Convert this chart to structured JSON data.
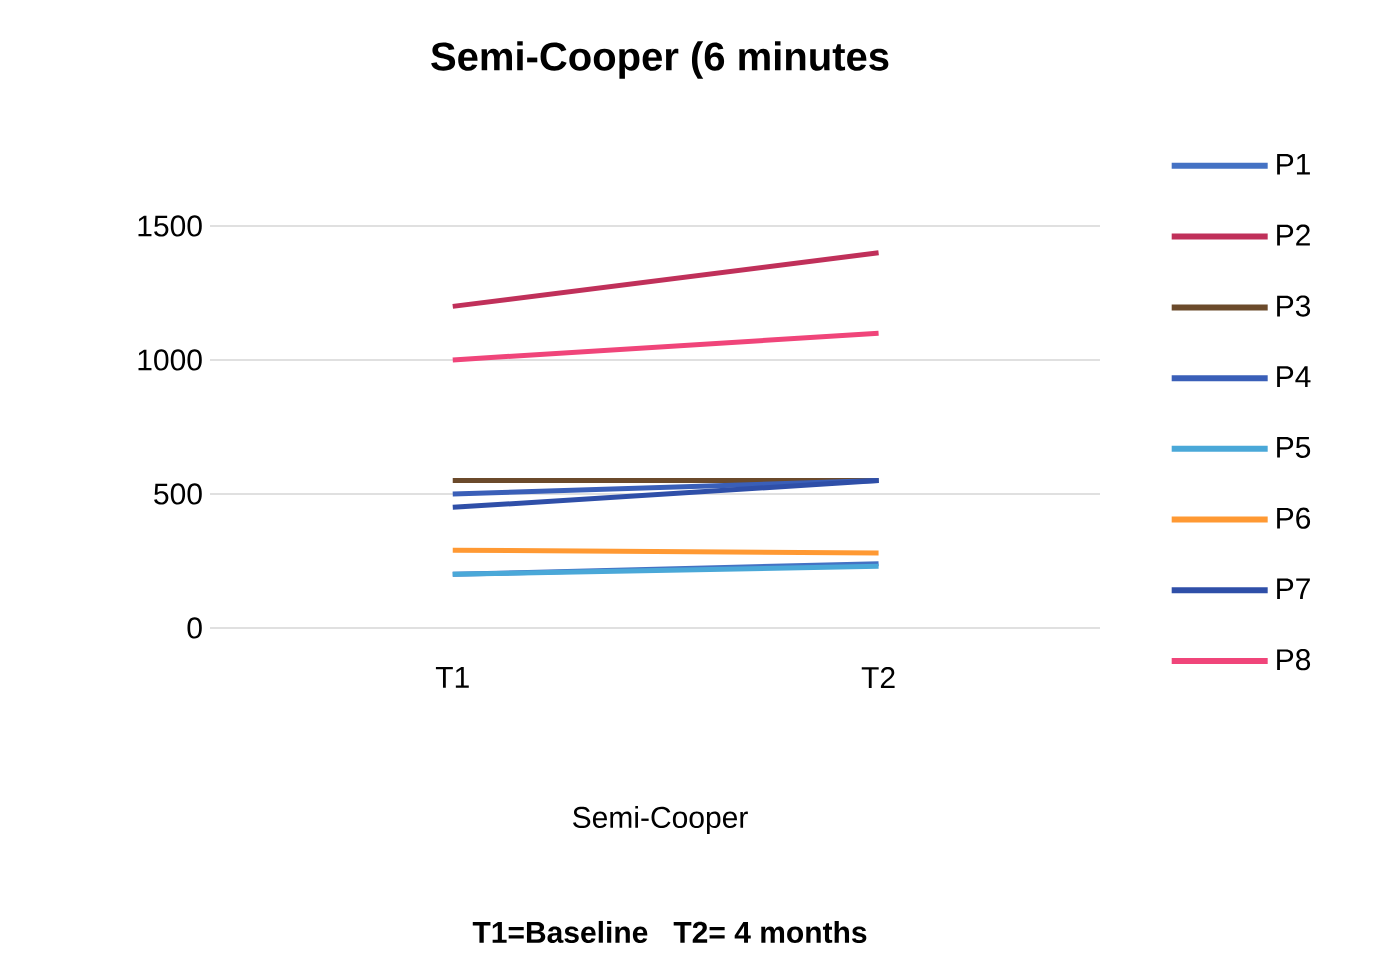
{
  "chart_data": {
    "type": "line",
    "title": "Semi-Cooper (6 minutes",
    "xlabel": "Semi-Cooper",
    "annotations": [
      "T1=Baseline   T2= 4 months"
    ],
    "categories": [
      "T1",
      "T2"
    ],
    "series": [
      {
        "name": "P1",
        "color": "#4472c4",
        "values": [
          200,
          240
        ]
      },
      {
        "name": "P2",
        "color": "#c0305a",
        "values": [
          1200,
          1400
        ]
      },
      {
        "name": "P3",
        "color": "#6b4a2b",
        "values": [
          550,
          550
        ]
      },
      {
        "name": "P4",
        "color": "#3a5fb8",
        "values": [
          500,
          550
        ]
      },
      {
        "name": "P5",
        "color": "#4aa8d8",
        "values": [
          200,
          230
        ]
      },
      {
        "name": "P6",
        "color": "#ff9933",
        "values": [
          290,
          280
        ]
      },
      {
        "name": "P7",
        "color": "#2f4fa8",
        "values": [
          450,
          550
        ]
      },
      {
        "name": "P8",
        "color": "#f0457a",
        "values": [
          1000,
          1100
        ]
      }
    ],
    "ylim": [
      0,
      1500
    ],
    "yticks": [
      0,
      500,
      1000,
      1500
    ],
    "grid": "y",
    "legend": "right",
    "marker": "none",
    "line_style": "solid"
  }
}
